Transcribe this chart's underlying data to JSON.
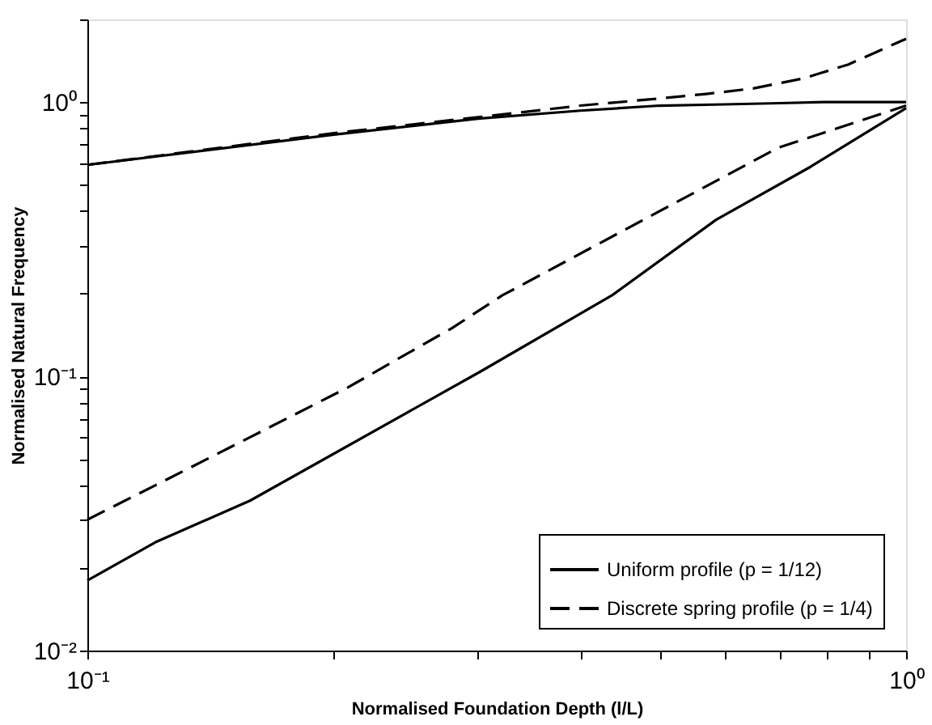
{
  "chart_data": {
    "type": "line",
    "xlabel": "Normalised Foundation Depth (l/L)",
    "ylabel": "Normalised Natural Frequency",
    "log": "xy",
    "grid": false,
    "legend": "bottom right",
    "xlim": [
      0.1,
      1
    ],
    "ylim": [
      0.01,
      2
    ],
    "xticks": [
      {
        "value": 0.1,
        "label": "10⁻¹"
      },
      {
        "value": 0.2,
        "label": null
      },
      {
        "value": 0.3,
        "label": null
      },
      {
        "value": 0.4,
        "label": null
      },
      {
        "value": 0.5,
        "label": null
      },
      {
        "value": 0.6,
        "label": null
      },
      {
        "value": 0.7,
        "label": null
      },
      {
        "value": 0.8,
        "label": null
      },
      {
        "value": 0.9,
        "label": null
      },
      {
        "value": 1,
        "label": "10⁰"
      }
    ],
    "yticks": [
      {
        "value": 0.01,
        "label": "10⁻²"
      },
      {
        "value": 0.02,
        "label": null
      },
      {
        "value": 0.03,
        "label": null
      },
      {
        "value": 0.04,
        "label": null
      },
      {
        "value": 0.05,
        "label": null
      },
      {
        "value": 0.06,
        "label": null
      },
      {
        "value": 0.07,
        "label": null
      },
      {
        "value": 0.08,
        "label": null
      },
      {
        "value": 0.09,
        "label": null
      },
      {
        "value": 0.1,
        "label": "10⁻¹"
      },
      {
        "value": 0.2,
        "label": null
      },
      {
        "value": 0.3,
        "label": null
      },
      {
        "value": 0.4,
        "label": null
      },
      {
        "value": 0.5,
        "label": null
      },
      {
        "value": 0.6,
        "label": null
      },
      {
        "value": 0.7,
        "label": null
      },
      {
        "value": 0.8,
        "label": null
      },
      {
        "value": 0.9,
        "label": null
      },
      {
        "value": 1,
        "label": "10⁰"
      },
      {
        "value": 2,
        "label": null
      }
    ],
    "series": [
      {
        "name": "Uniform profile (p = 1/12)",
        "color": "#000000",
        "line_style": "solid",
        "x": [
          0.1,
          0.2,
          0.3,
          0.4,
          0.5,
          0.6,
          0.7,
          0.8,
          1
        ],
        "values": [
          0.59,
          0.76,
          0.87,
          0.93,
          0.97,
          0.98,
          0.99,
          1.0,
          1.0
        ]
      },
      {
        "name": "Discrete spring profile (p = 1/4)",
        "color": "#000000",
        "line_style": "dashed",
        "x": [
          0.1,
          0.2,
          0.3,
          0.4,
          0.5,
          0.57,
          0.65,
          0.75,
          0.85,
          1
        ],
        "values": [
          0.59,
          0.77,
          0.88,
          0.97,
          1.03,
          1.07,
          1.12,
          1.22,
          1.37,
          1.7
        ]
      },
      {
        "color": "#000000",
        "line_style": "solid",
        "x": [
          0.1,
          0.121,
          0.158,
          0.302,
          0.437,
          0.586,
          0.764,
          1
        ],
        "values": [
          0.018,
          0.0248,
          0.0352,
          0.104,
          0.197,
          0.372,
          0.58,
          0.95
        ]
      },
      {
        "color": "#000000",
        "line_style": "dashed",
        "x": [
          0.1,
          0.121,
          0.208,
          0.279,
          0.321,
          0.5,
          0.697,
          1
        ],
        "values": [
          0.03,
          0.04,
          0.091,
          0.15,
          0.197,
          0.4,
          0.68,
          0.97
        ]
      }
    ]
  }
}
